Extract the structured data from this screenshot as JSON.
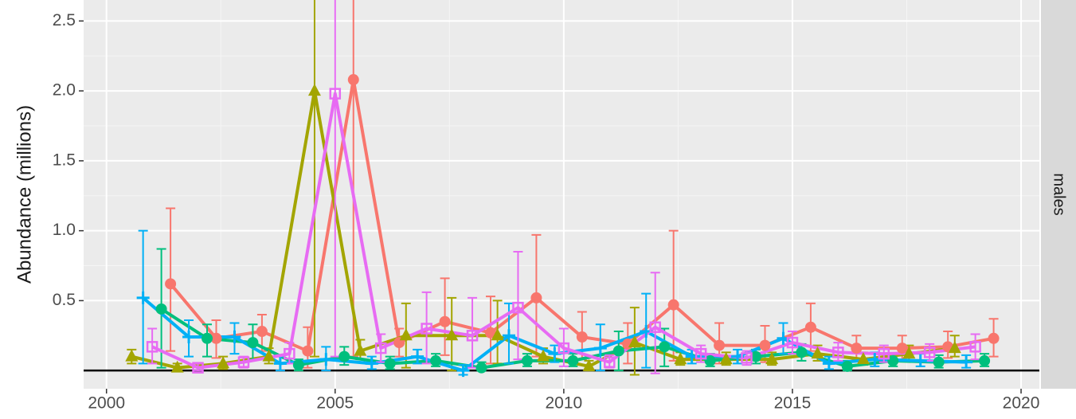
{
  "chart_data": {
    "type": "line-errorbar",
    "y_label": "Abundance (millions)",
    "facet_label": "males",
    "xlim": [
      1999.5,
      2020.4
    ],
    "xticks": [
      2000,
      2005,
      2010,
      2015,
      2020
    ],
    "ylim": [
      -0.13,
      2.65
    ],
    "yticks": [
      0.5,
      {
        "value": 1.0,
        "label": "1.0"
      },
      1.5,
      {
        "value": 2.0,
        "label": "2.0"
      },
      2.5
    ],
    "hline": 0,
    "grid": true,
    "minor_grid": true,
    "series": [
      {
        "color": "#F8766D",
        "shape": "circle",
        "x": [
          2001.4,
          2002.4,
          2003.4,
          2004.4,
          2005.4,
          2006.4,
          2007.4,
          2008.4,
          2009.4,
          2010.4,
          2011.4,
          2012.4,
          2013.4,
          2014.4,
          2015.4,
          2016.4,
          2017.4,
          2018.4,
          2019.4
        ],
        "values": [
          0.62,
          0.23,
          0.28,
          0.14,
          2.08,
          0.2,
          0.35,
          0.27,
          0.52,
          0.24,
          0.19,
          0.47,
          0.18,
          0.18,
          0.31,
          0.16,
          0.16,
          0.17,
          0.23
        ],
        "lower": [
          0.14,
          0.09,
          0.14,
          0.02,
          0.1,
          0.1,
          0.11,
          0.05,
          0.1,
          0.08,
          0.05,
          0.07,
          0.05,
          0.06,
          0.14,
          0.08,
          0.08,
          0.09,
          0.1
        ],
        "upper": [
          1.16,
          0.36,
          0.4,
          0.31,
          3.0,
          0.3,
          0.66,
          0.53,
          0.97,
          0.42,
          0.34,
          1.0,
          0.34,
          0.32,
          0.48,
          0.25,
          0.25,
          0.28,
          0.37
        ]
      },
      {
        "color": "#A3A500",
        "shape": "triangle",
        "x": [
          2000.55,
          2001.55,
          2002.55,
          2003.55,
          2004.55,
          2005.55,
          2006.55,
          2007.55,
          2008.55,
          2009.55,
          2010.55,
          2011.55,
          2012.55,
          2013.55,
          2014.55,
          2015.55,
          2016.55,
          2017.55,
          2018.55
        ],
        "values": [
          0.1,
          0.02,
          0.05,
          0.1,
          2.0,
          0.14,
          0.25,
          0.25,
          0.25,
          0.1,
          0.03,
          0.2,
          0.08,
          0.08,
          0.08,
          0.12,
          0.08,
          0.12,
          0.16
        ],
        "lower": [
          0.05,
          0.0,
          0.01,
          0.05,
          0.1,
          0.08,
          0.02,
          0.0,
          0.05,
          0.05,
          0.0,
          -0.03,
          0.04,
          0.04,
          0.04,
          0.07,
          0.04,
          0.07,
          0.1
        ],
        "upper": [
          0.15,
          0.05,
          0.1,
          0.16,
          3.0,
          0.22,
          0.48,
          0.52,
          0.5,
          0.16,
          0.07,
          0.45,
          0.13,
          0.13,
          0.13,
          0.18,
          0.13,
          0.18,
          0.25
        ]
      },
      {
        "color": "#00BF7D",
        "shape": "circle",
        "x": [
          2001.2,
          2002.2,
          2003.2,
          2004.2,
          2005.2,
          2006.2,
          2007.2,
          2008.2,
          2009.2,
          2010.2,
          2011.2,
          2012.2,
          2013.2,
          2014.2,
          2015.2,
          2016.2,
          2017.2,
          2018.2,
          2019.2
        ],
        "values": [
          0.44,
          0.23,
          0.2,
          0.04,
          0.1,
          0.05,
          0.07,
          0.02,
          0.07,
          0.07,
          0.14,
          0.17,
          0.07,
          0.1,
          0.13,
          0.03,
          0.07,
          0.06,
          0.07
        ],
        "lower": [
          0.02,
          0.1,
          0.08,
          0.0,
          0.04,
          0.01,
          0.03,
          0.0,
          0.03,
          0.03,
          0.0,
          0.03,
          0.03,
          0.05,
          0.07,
          0.0,
          0.03,
          0.02,
          0.03
        ],
        "upper": [
          0.87,
          0.33,
          0.33,
          0.08,
          0.17,
          0.1,
          0.12,
          0.06,
          0.12,
          0.12,
          0.28,
          0.3,
          0.12,
          0.15,
          0.19,
          0.07,
          0.12,
          0.11,
          0.12
        ]
      },
      {
        "color": "#00B0F6",
        "shape": "plus",
        "x": [
          2000.8,
          2001.8,
          2002.8,
          2003.8,
          2004.8,
          2005.8,
          2006.8,
          2007.8,
          2008.8,
          2009.8,
          2010.8,
          2011.8,
          2012.8,
          2013.8,
          2014.8,
          2015.8,
          2016.8,
          2017.8,
          2018.8
        ],
        "values": [
          0.52,
          0.24,
          0.24,
          0.05,
          0.08,
          0.05,
          0.1,
          0.0,
          0.25,
          0.12,
          0.16,
          0.28,
          0.1,
          0.1,
          0.23,
          0.05,
          0.08,
          0.07,
          0.06
        ],
        "lower": [
          0.05,
          0.1,
          0.12,
          0.0,
          0.0,
          0.01,
          0.05,
          -0.03,
          0.05,
          0.06,
          0.0,
          0.02,
          0.05,
          0.05,
          0.12,
          0.01,
          0.03,
          0.03,
          0.02
        ],
        "upper": [
          1.0,
          0.36,
          0.34,
          0.1,
          0.17,
          0.1,
          0.15,
          0.04,
          0.48,
          0.18,
          0.33,
          0.55,
          0.15,
          0.15,
          0.34,
          0.1,
          0.13,
          0.12,
          0.11
        ]
      },
      {
        "color": "#E76BF3",
        "shape": "square-open",
        "x": [
          2001.0,
          2002.0,
          2003.0,
          2004.0,
          2005.0,
          2006.0,
          2007.0,
          2008.0,
          2009.0,
          2010.0,
          2011.0,
          2012.0,
          2013.0,
          2014.0,
          2015.0,
          2016.0,
          2017.0,
          2018.0,
          2019.0
        ],
        "values": [
          0.17,
          0.02,
          0.06,
          0.12,
          1.98,
          0.16,
          0.3,
          0.25,
          0.45,
          0.16,
          0.06,
          0.31,
          0.12,
          0.09,
          0.2,
          0.13,
          0.12,
          0.13,
          0.17
        ],
        "lower": [
          0.05,
          0.0,
          0.02,
          0.05,
          0.1,
          0.06,
          0.05,
          0.02,
          0.08,
          0.03,
          0.02,
          -0.02,
          0.06,
          0.04,
          0.12,
          0.07,
          0.06,
          0.07,
          0.08
        ],
        "upper": [
          0.3,
          0.05,
          0.1,
          0.2,
          3.0,
          0.26,
          0.56,
          0.52,
          0.85,
          0.3,
          0.11,
          0.7,
          0.18,
          0.14,
          0.28,
          0.2,
          0.18,
          0.19,
          0.26
        ]
      }
    ]
  }
}
